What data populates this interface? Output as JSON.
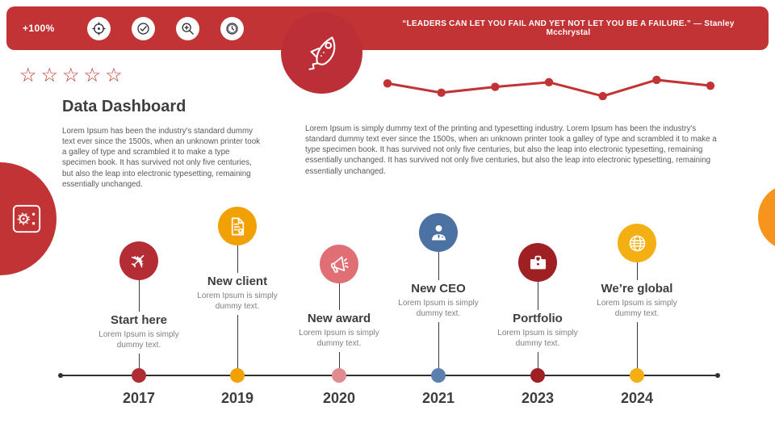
{
  "top_bar": {
    "stat": "+100%",
    "bar_color": "#C23335",
    "rocket_badge_color": "#BC2F36",
    "icon_names": [
      "target-icon",
      "check-circle-icon",
      "zoom-in-icon",
      "clock-icon"
    ],
    "quote": "“LEADERS CAN LET YOU FAIL AND YET NOT LET YOU BE A FAILURE.” — Stanley Mcchrystal"
  },
  "rating": {
    "stars": 5,
    "style": "outline",
    "color": "#C0392B"
  },
  "header": {
    "title": "Data Dashboard"
  },
  "intro": {
    "left_paragraph": "Lorem Ipsum has been the industry's standard dummy text ever since the 1500s, when an unknown printer took a galley of type and scrambled it to make a type specimen book. It has survived not only five centuries, but also the leap into electronic typesetting, remaining essentially unchanged.",
    "right_paragraph": "Lorem Ipsum is simply dummy text of the printing and typesetting industry. Lorem Ipsum has been the industry's standard dummy text ever since the 1500s, when an unknown printer took a galley of type and scrambled it to make a type specimen book. It has survived not only five centuries, but also the leap into electronic typesetting, remaining essentially unchanged. It has survived not only five centuries, but also the leap into electronic typesetting, remaining essentially unchanged."
  },
  "chart_data": {
    "type": "line",
    "title": "decorative trend sparkline (unlabeled)",
    "x": [
      1,
      2,
      3,
      4,
      5,
      6,
      7
    ],
    "values": [
      78,
      30,
      60,
      84,
      12,
      96,
      66
    ],
    "ylim": [
      0,
      100
    ],
    "xlabel": "",
    "ylabel": "",
    "grid": false,
    "legend": "none",
    "color": "#C23335"
  },
  "timeline": {
    "milestones": [
      {
        "year": "2017",
        "title": "Start here",
        "description": "Lorem Ipsum is simply dummy text.",
        "icon": "plane-icon",
        "color": "#B42D35",
        "dot_color": "#B02C34"
      },
      {
        "year": "2019",
        "title": "New client",
        "description": "Lorem Ipsum is simply dummy text.",
        "icon": "document-icon",
        "color": "#F2A104",
        "dot_color": "#F2A104"
      },
      {
        "year": "2020",
        "title": "New award",
        "description": "Lorem Ipsum is simply dummy text.",
        "icon": "megaphone-icon",
        "color": "#E06F75",
        "dot_color": "#E18A90"
      },
      {
        "year": "2021",
        "title": "New CEO",
        "description": "Lorem Ipsum is simply dummy text.",
        "icon": "person-icon",
        "color": "#4C72A3",
        "dot_color": "#5B80AF"
      },
      {
        "year": "2023",
        "title": "Portfolio",
        "description": "Lorem Ipsum is simply dummy text.",
        "icon": "briefcase-icon",
        "color": "#9E2023",
        "dot_color": "#9E2023"
      },
      {
        "year": "2024",
        "title": "We’re global",
        "description": "Lorem Ipsum is simply dummy text.",
        "icon": "globe-icon",
        "color": "#F4B013",
        "dot_color": "#F4B013"
      }
    ]
  },
  "decorations": {
    "left_circle_color": "#C23335",
    "left_circle_icon": "safe-icon",
    "right_circle_color": "#F7941D"
  }
}
